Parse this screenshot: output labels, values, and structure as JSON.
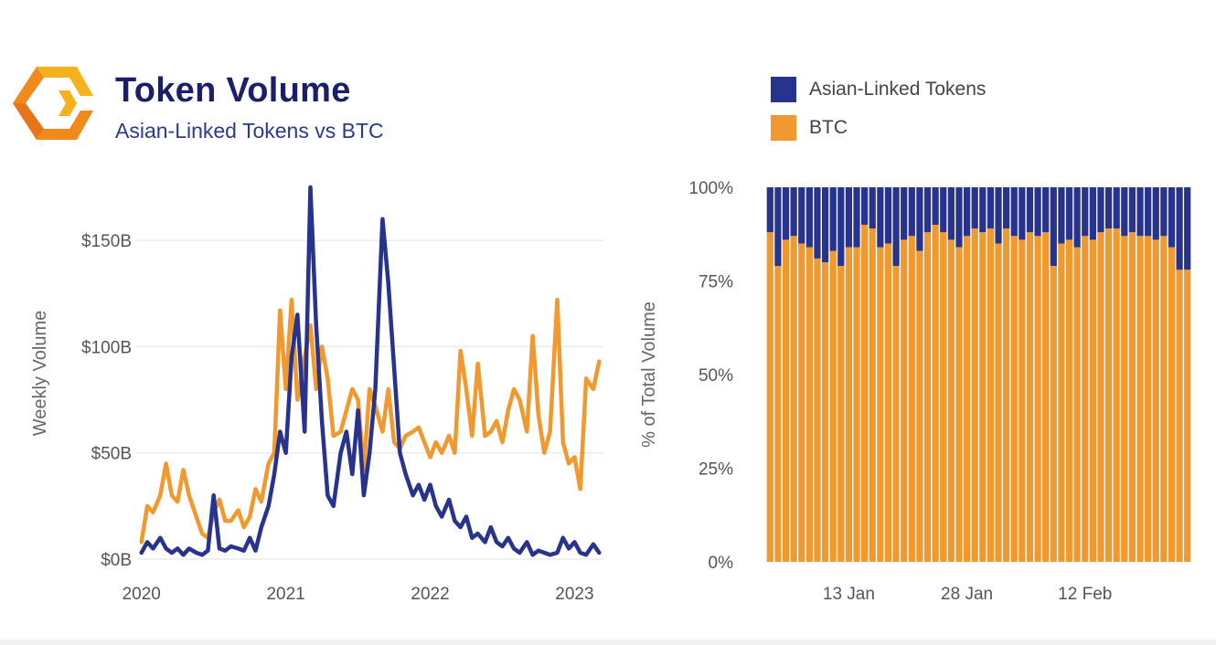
{
  "header": {
    "title": "Token Volume",
    "subtitle": "Asian-Linked Tokens vs BTC",
    "logo_icon": "hexagon-brackets-logo"
  },
  "colors": {
    "asian": "#27338c",
    "btc": "#f0992f",
    "title": "#1a1f6b",
    "subtitle": "#2b3a8e",
    "grid": "#ececec"
  },
  "legend": {
    "placement": "top-right",
    "items": [
      {
        "label": "Asian-Linked Tokens",
        "color": "#27338c"
      },
      {
        "label": "BTC",
        "color": "#f0992f"
      }
    ]
  },
  "chart_data": [
    {
      "type": "line",
      "ylabel": "Weekly Volume",
      "ylim": [
        0,
        175
      ],
      "yunit": "B USD",
      "yticks": [
        0,
        50,
        100,
        150
      ],
      "ytick_labels": [
        "$0B",
        "$50B",
        "$100B",
        "$150B"
      ],
      "xlim": [
        2019.97,
        2023.2
      ],
      "xticks": [
        2020,
        2021,
        2022,
        2023
      ],
      "xtick_labels": [
        "2020",
        "2021",
        "2022",
        "2023"
      ],
      "grid": true,
      "series": [
        {
          "name": "BTC",
          "color": "#f0992f",
          "x": [
            2020.0,
            2020.04,
            2020.08,
            2020.13,
            2020.17,
            2020.21,
            2020.25,
            2020.29,
            2020.33,
            2020.38,
            2020.42,
            2020.46,
            2020.5,
            2020.54,
            2020.58,
            2020.62,
            2020.67,
            2020.71,
            2020.75,
            2020.79,
            2020.83,
            2020.88,
            2020.92,
            2020.96,
            2021.0,
            2021.04,
            2021.08,
            2021.13,
            2021.17,
            2021.21,
            2021.25,
            2021.29,
            2021.33,
            2021.38,
            2021.42,
            2021.46,
            2021.5,
            2021.54,
            2021.58,
            2021.62,
            2021.67,
            2021.71,
            2021.75,
            2021.79,
            2021.83,
            2021.88,
            2021.92,
            2021.96,
            2022.0,
            2022.04,
            2022.08,
            2022.13,
            2022.17,
            2022.21,
            2022.25,
            2022.29,
            2022.33,
            2022.38,
            2022.42,
            2022.46,
            2022.5,
            2022.54,
            2022.58,
            2022.62,
            2022.67,
            2022.71,
            2022.75,
            2022.79,
            2022.83,
            2022.88,
            2022.92,
            2022.96,
            2023.0,
            2023.04,
            2023.08,
            2023.13,
            2023.17
          ],
          "values": [
            8,
            25,
            22,
            30,
            45,
            30,
            27,
            42,
            30,
            20,
            12,
            10,
            22,
            28,
            18,
            18,
            23,
            15,
            20,
            33,
            27,
            45,
            50,
            117,
            80,
            122,
            75,
            95,
            110,
            80,
            100,
            85,
            58,
            60,
            70,
            80,
            75,
            42,
            80,
            72,
            60,
            80,
            55,
            52,
            58,
            60,
            62,
            55,
            48,
            55,
            50,
            58,
            50,
            98,
            80,
            58,
            92,
            58,
            60,
            65,
            55,
            70,
            80,
            75,
            60,
            105,
            68,
            50,
            60,
            122,
            55,
            45,
            48,
            33,
            85,
            80,
            93
          ]
        },
        {
          "name": "Asian-Linked Tokens",
          "color": "#27338c",
          "x": [
            2020.0,
            2020.04,
            2020.08,
            2020.13,
            2020.17,
            2020.21,
            2020.25,
            2020.29,
            2020.33,
            2020.38,
            2020.42,
            2020.46,
            2020.5,
            2020.54,
            2020.58,
            2020.62,
            2020.67,
            2020.71,
            2020.75,
            2020.79,
            2020.83,
            2020.88,
            2020.92,
            2020.96,
            2021.0,
            2021.04,
            2021.08,
            2021.13,
            2021.17,
            2021.21,
            2021.25,
            2021.29,
            2021.33,
            2021.38,
            2021.42,
            2021.46,
            2021.5,
            2021.54,
            2021.58,
            2021.62,
            2021.67,
            2021.71,
            2021.75,
            2021.79,
            2021.83,
            2021.88,
            2021.92,
            2021.96,
            2022.0,
            2022.04,
            2022.08,
            2022.13,
            2022.17,
            2022.21,
            2022.25,
            2022.29,
            2022.33,
            2022.38,
            2022.42,
            2022.46,
            2022.5,
            2022.54,
            2022.58,
            2022.62,
            2022.67,
            2022.71,
            2022.75,
            2022.79,
            2022.83,
            2022.88,
            2022.92,
            2022.96,
            2023.0,
            2023.04,
            2023.08,
            2023.13,
            2023.17
          ],
          "values": [
            3,
            8,
            5,
            10,
            5,
            3,
            5,
            2,
            5,
            3,
            2,
            4,
            30,
            5,
            4,
            6,
            5,
            4,
            10,
            4,
            15,
            25,
            40,
            60,
            50,
            95,
            115,
            60,
            175,
            110,
            65,
            30,
            25,
            50,
            60,
            40,
            70,
            30,
            50,
            80,
            160,
            130,
            90,
            50,
            40,
            30,
            35,
            28,
            35,
            25,
            20,
            28,
            18,
            15,
            20,
            10,
            12,
            8,
            15,
            8,
            6,
            10,
            5,
            3,
            8,
            2,
            4,
            3,
            2,
            3,
            10,
            5,
            8,
            3,
            2,
            7,
            3
          ]
        }
      ]
    },
    {
      "type": "bar",
      "stacked": true,
      "ylabel": "% of Total Volume",
      "ylim": [
        0,
        100
      ],
      "yticks": [
        0,
        25,
        50,
        75,
        100
      ],
      "ytick_labels": [
        "0%",
        "25%",
        "50%",
        "75%",
        "100%"
      ],
      "xtick_labels": [
        "13 Jan",
        "28 Jan",
        "12 Feb"
      ],
      "xtick_positions": [
        10,
        25,
        40
      ],
      "series": [
        {
          "name": "BTC",
          "color": "#f0992f",
          "values": [
            88,
            79,
            86,
            87,
            85,
            84,
            81,
            80,
            83,
            79,
            84,
            84,
            90,
            89,
            84,
            85,
            79,
            86,
            87,
            83,
            88,
            90,
            88,
            86,
            84,
            87,
            89,
            88,
            89,
            85,
            89,
            87,
            86,
            88,
            87,
            88,
            79,
            85,
            86,
            84,
            87,
            86,
            88,
            89,
            89,
            87,
            88,
            87,
            87,
            86,
            87,
            84,
            78,
            78
          ]
        },
        {
          "name": "Asian-Linked Tokens",
          "color": "#27338c",
          "values": [
            12,
            21,
            14,
            13,
            15,
            16,
            19,
            20,
            17,
            21,
            16,
            16,
            10,
            11,
            16,
            15,
            21,
            14,
            13,
            17,
            12,
            10,
            12,
            14,
            16,
            13,
            11,
            12,
            11,
            15,
            11,
            13,
            14,
            12,
            13,
            12,
            21,
            15,
            14,
            16,
            13,
            14,
            12,
            11,
            11,
            13,
            12,
            13,
            13,
            14,
            13,
            16,
            22,
            22
          ]
        }
      ]
    }
  ]
}
